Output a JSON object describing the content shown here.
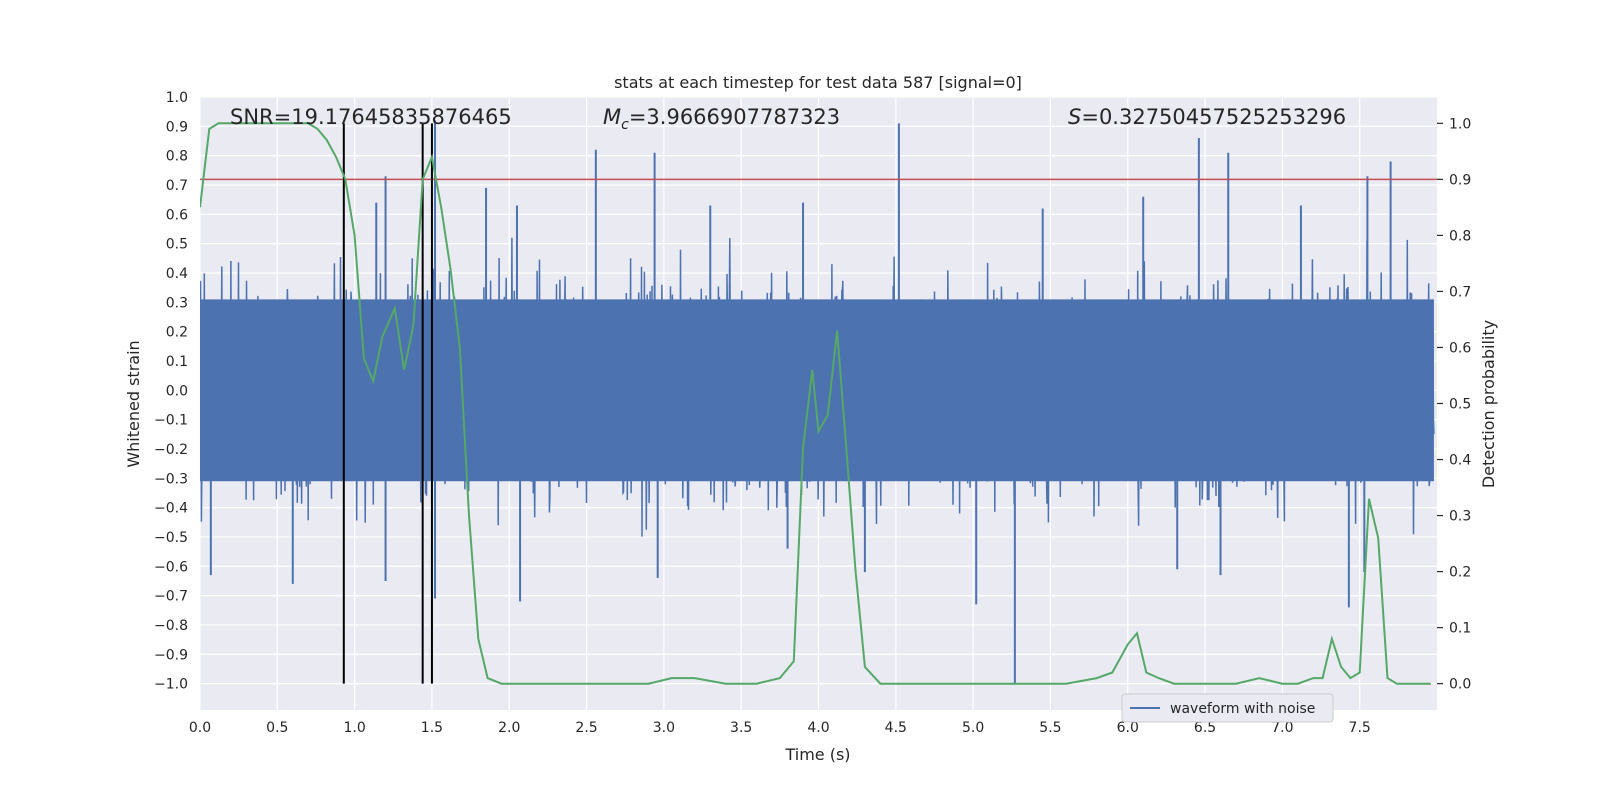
{
  "chart_data": {
    "type": "line",
    "title": "stats at each timestep for test data 587 [signal=0]",
    "xlabel": "Time (s)",
    "ylabel": "Whitened strain",
    "y2label": "Detection probability",
    "xlim": [
      0.0,
      8.0
    ],
    "ylim": [
      -1.09,
      1.0
    ],
    "y2lim": [
      -0.047,
      1.047
    ],
    "x_ticks": [
      "0.0",
      "0.5",
      "1.0",
      "1.5",
      "2.0",
      "2.5",
      "3.0",
      "3.5",
      "4.0",
      "4.5",
      "5.0",
      "5.5",
      "6.0",
      "6.5",
      "7.0",
      "7.5"
    ],
    "x_tick_values": [
      0.0,
      0.5,
      1.0,
      1.5,
      2.0,
      2.5,
      3.0,
      3.5,
      4.0,
      4.5,
      5.0,
      5.5,
      6.0,
      6.5,
      7.0,
      7.5
    ],
    "y_ticks": [
      "1.0",
      "0.9",
      "0.8",
      "0.7",
      "0.6",
      "0.5",
      "0.4",
      "0.3",
      "0.2",
      "0.1",
      "0.0",
      "−0.1",
      "−0.2",
      "−0.3",
      "−0.4",
      "−0.5",
      "−0.6",
      "−0.7",
      "−0.8",
      "−0.9",
      "−1.0"
    ],
    "y_tick_values": [
      1.0,
      0.9,
      0.8,
      0.7,
      0.6,
      0.5,
      0.4,
      0.3,
      0.2,
      0.1,
      0.0,
      -0.1,
      -0.2,
      -0.3,
      -0.4,
      -0.5,
      -0.6,
      -0.7,
      -0.8,
      -0.9,
      -1.0
    ],
    "y2_ticks": [
      "1.0",
      "0.9",
      "0.8",
      "0.7",
      "0.6",
      "0.5",
      "0.4",
      "0.3",
      "0.2",
      "0.1",
      "0.0"
    ],
    "y2_tick_values": [
      1.0,
      0.9,
      0.8,
      0.7,
      0.6,
      0.5,
      0.4,
      0.3,
      0.2,
      0.1,
      0.0
    ],
    "annotations": {
      "snr": "SNR=19.17645835876465",
      "mc_symbol": "M",
      "mc_sub": "c",
      "mc_value": "=3.9666907787323",
      "s_symbol": "S",
      "s_value": "=0.32750457525253296"
    },
    "grid": true,
    "legend": {
      "placement": "bottom-right",
      "entries": [
        "waveform with noise"
      ]
    },
    "colors": {
      "background": "#eaeaf2",
      "waveform": "#4c72b0",
      "probability": "#55a868",
      "threshold": "#c44e52",
      "markers": "#000000",
      "grid": "#ffffff"
    },
    "series": [
      {
        "name": "waveform with noise",
        "kind": "noise",
        "x_range": [
          0.0,
          7.98
        ],
        "typical_envelope": [
          -0.42,
          0.42
        ],
        "spikes": [
          {
            "x": 1.14,
            "y": 0.64
          },
          {
            "x": 1.2,
            "y": 0.73
          },
          {
            "x": 1.52,
            "y": 0.92
          },
          {
            "x": 1.85,
            "y": 0.69
          },
          {
            "x": 2.05,
            "y": 0.63
          },
          {
            "x": 2.56,
            "y": 0.82
          },
          {
            "x": 2.94,
            "y": 0.81
          },
          {
            "x": 3.3,
            "y": 0.63
          },
          {
            "x": 3.9,
            "y": 0.64
          },
          {
            "x": 4.52,
            "y": 0.91
          },
          {
            "x": 5.45,
            "y": 0.62
          },
          {
            "x": 6.1,
            "y": 0.66
          },
          {
            "x": 6.46,
            "y": 0.86
          },
          {
            "x": 6.65,
            "y": 0.81
          },
          {
            "x": 7.12,
            "y": 0.63
          },
          {
            "x": 7.55,
            "y": 0.73
          },
          {
            "x": 7.7,
            "y": 0.78
          },
          {
            "x": 0.07,
            "y": -0.63
          },
          {
            "x": 0.6,
            "y": -0.66
          },
          {
            "x": 1.2,
            "y": -0.65
          },
          {
            "x": 1.52,
            "y": -0.71
          },
          {
            "x": 2.07,
            "y": -0.72
          },
          {
            "x": 2.96,
            "y": -0.64
          },
          {
            "x": 3.8,
            "y": -0.54
          },
          {
            "x": 4.3,
            "y": -0.62
          },
          {
            "x": 5.02,
            "y": -0.73
          },
          {
            "x": 5.27,
            "y": -1.0
          },
          {
            "x": 6.32,
            "y": -0.61
          },
          {
            "x": 6.6,
            "y": -0.63
          },
          {
            "x": 7.43,
            "y": -0.74
          },
          {
            "x": 7.53,
            "y": -0.62
          }
        ]
      },
      {
        "name": "",
        "axis": "right",
        "x": [
          0.0,
          0.06,
          0.12,
          0.2,
          0.3,
          0.4,
          0.5,
          0.6,
          0.7,
          0.76,
          0.82,
          0.88,
          0.94,
          1.0,
          1.06,
          1.12,
          1.18,
          1.26,
          1.32,
          1.38,
          1.44,
          1.5,
          1.56,
          1.62,
          1.68,
          1.74,
          1.8,
          1.86,
          1.95,
          2.1,
          2.3,
          2.5,
          2.7,
          2.9,
          3.05,
          3.2,
          3.4,
          3.6,
          3.75,
          3.84,
          3.9,
          3.96,
          4.0,
          4.06,
          4.12,
          4.18,
          4.24,
          4.3,
          4.4,
          4.6,
          4.8,
          5.0,
          5.2,
          5.4,
          5.6,
          5.8,
          5.9,
          6.0,
          6.06,
          6.12,
          6.2,
          6.3,
          6.5,
          6.7,
          6.85,
          7.0,
          7.1,
          7.2,
          7.26,
          7.32,
          7.38,
          7.44,
          7.5,
          7.56,
          7.62,
          7.68,
          7.74,
          7.85,
          7.96
        ],
        "y": [
          0.85,
          0.99,
          1.0,
          1.0,
          1.0,
          1.0,
          1.0,
          1.0,
          1.0,
          0.99,
          0.97,
          0.94,
          0.9,
          0.8,
          0.58,
          0.54,
          0.62,
          0.67,
          0.56,
          0.64,
          0.9,
          0.94,
          0.85,
          0.74,
          0.6,
          0.3,
          0.08,
          0.01,
          0.0,
          0.0,
          0.0,
          0.0,
          0.0,
          0.0,
          0.01,
          0.01,
          0.0,
          0.0,
          0.01,
          0.04,
          0.42,
          0.56,
          0.45,
          0.48,
          0.63,
          0.42,
          0.2,
          0.03,
          0.0,
          0.0,
          0.0,
          0.0,
          0.0,
          0.0,
          0.0,
          0.01,
          0.02,
          0.07,
          0.09,
          0.02,
          0.01,
          0.0,
          0.0,
          0.0,
          0.01,
          0.0,
          0.0,
          0.01,
          0.01,
          0.08,
          0.03,
          0.01,
          0.02,
          0.33,
          0.26,
          0.01,
          0.0,
          0.0,
          0.0
        ]
      }
    ],
    "threshold": {
      "axis": "right",
      "y": 0.9
    },
    "vertical_markers_x": [
      0.93,
      1.44,
      1.5
    ]
  }
}
